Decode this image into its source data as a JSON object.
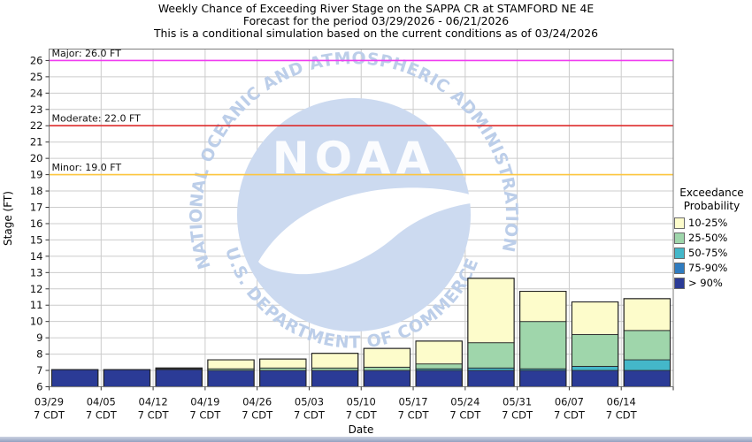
{
  "header": {
    "title": "Weekly Chance of Exceeding River Stage on the SAPPA CR at STAMFORD NE 4E",
    "subtitle": "Forecast for the period 03/29/2026 - 06/21/2026",
    "note": "This is a conditional simulation based on the current conditions as of 03/24/2026"
  },
  "legend": {
    "title_line1": "Exceedance",
    "title_line2": "Probability"
  },
  "watermark": {
    "arc_top": "NATIONAL OCEANIC AND ATMOSPHERIC ADMINISTRATION",
    "arc_bottom": "U.S. DEPARTMENT OF COMMERCE",
    "center": "NOAA",
    "circle_color": "#ccdaf0",
    "text_color": "#bccee9"
  },
  "chart_data": {
    "type": "bar",
    "stacked": true,
    "title": "Weekly Chance of Exceeding River Stage on the SAPPA CR at STAMFORD NE 4E",
    "subtitle": "Forecast for the period 03/29/2026 - 06/21/2026",
    "note": "This is a conditional simulation based on the current conditions as of 03/24/2026",
    "xlabel": "Date",
    "ylabel": "Stage (FT)",
    "ylim": [
      6,
      26.7
    ],
    "y_tick_step": 1,
    "grid": true,
    "legend_position": "right",
    "base_value": 6.0,
    "categories": [
      "03/29",
      "04/05",
      "04/12",
      "04/19",
      "04/26",
      "05/03",
      "05/10",
      "05/17",
      "05/24",
      "05/31",
      "06/07",
      "06/14"
    ],
    "category_sublabel": "7 CDT",
    "series": [
      {
        "name": "> 90%",
        "color": "#2b3b96",
        "tops": [
          7.05,
          7.05,
          7.05,
          7.0,
          7.0,
          7.0,
          7.0,
          7.0,
          7.0,
          7.0,
          7.0,
          7.0
        ]
      },
      {
        "name": "75-90%",
        "color": "#2f7cc0",
        "tops": [
          7.05,
          7.05,
          7.05,
          7.0,
          7.0,
          7.0,
          7.0,
          7.0,
          7.0,
          7.0,
          7.0,
          7.0
        ]
      },
      {
        "name": "50-75%",
        "color": "#44b7c9",
        "tops": [
          7.05,
          7.05,
          7.05,
          7.0,
          7.0,
          7.0,
          7.0,
          7.1,
          7.15,
          7.1,
          7.25,
          7.65
        ]
      },
      {
        "name": "25-50%",
        "color": "#9fd6ab",
        "tops": [
          7.05,
          7.05,
          7.1,
          7.1,
          7.15,
          7.15,
          7.2,
          7.4,
          8.7,
          10.0,
          9.2,
          9.45
        ]
      },
      {
        "name": "10-25%",
        "color": "#fdfccb",
        "tops": [
          7.05,
          7.05,
          7.15,
          7.65,
          7.7,
          8.05,
          8.35,
          8.8,
          12.65,
          11.85,
          11.2,
          11.4
        ]
      }
    ],
    "thresholds": [
      {
        "name": "Major",
        "label": "Major: 26.0 FT",
        "value": 26.0,
        "color": "#f03cf0"
      },
      {
        "name": "Moderate",
        "label": "Moderate: 22.0 FT",
        "value": 22.0,
        "color": "#dd2c2c"
      },
      {
        "name": "Minor",
        "label": "Minor: 19.0 FT",
        "value": 19.0,
        "color": "#fdc63e"
      }
    ]
  }
}
